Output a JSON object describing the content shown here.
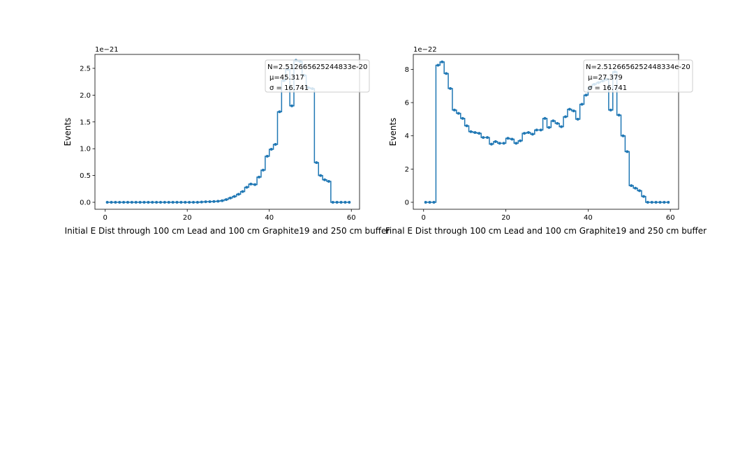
{
  "chart_data": [
    {
      "type": "line",
      "drawstyle": "steps-mid",
      "marker": "dot",
      "color": "#1f77b4",
      "xlabel": "Initial E Dist through 100 cm Lead and 100 cm Graphite19 and 250 cm buffer",
      "ylabel": "Events",
      "offset_text": "1e−21",
      "scale": 1e-21,
      "xlim": [
        -2.5,
        62
      ],
      "ylim": [
        -0.13,
        2.76
      ],
      "xticks": [
        0,
        20,
        40,
        60
      ],
      "xtick_labels": [
        "0",
        "20",
        "40",
        "60"
      ],
      "yticks": [
        0,
        0.5,
        1.0,
        1.5,
        2.0,
        2.5
      ],
      "ytick_labels": [
        "0.0",
        "0.5",
        "1.0",
        "1.5",
        "2.0",
        "2.5"
      ],
      "x": [
        0.5,
        1.5,
        2.5,
        3.5,
        4.5,
        5.5,
        6.5,
        7.5,
        8.5,
        9.5,
        10.5,
        11.5,
        12.5,
        13.5,
        14.5,
        15.5,
        16.5,
        17.5,
        18.5,
        19.5,
        20.5,
        21.5,
        22.5,
        23.5,
        24.5,
        25.5,
        26.5,
        27.5,
        28.5,
        29.5,
        30.5,
        31.5,
        32.5,
        33.5,
        34.5,
        35.5,
        36.5,
        37.5,
        38.5,
        39.5,
        40.5,
        41.5,
        42.5,
        43.5,
        44.5,
        45.5,
        46.5,
        47.5,
        48.5,
        49.5,
        50.5,
        51.5,
        52.5,
        53.5,
        54.5,
        55.5,
        56.5,
        57.5,
        58.5,
        59.5
      ],
      "y": [
        0,
        0,
        0,
        0,
        0,
        0,
        0,
        0,
        0,
        0,
        0,
        0,
        0,
        0,
        0,
        0,
        0,
        0,
        0,
        0,
        0,
        0,
        0,
        0.005,
        0.01,
        0.012,
        0.015,
        0.02,
        0.03,
        0.05,
        0.08,
        0.11,
        0.15,
        0.2,
        0.28,
        0.34,
        0.33,
        0.47,
        0.6,
        0.86,
        0.99,
        1.08,
        1.69,
        2.27,
        2.48,
        1.8,
        2.65,
        2.63,
        2.37,
        2.14,
        2.12,
        0.74,
        0.5,
        0.42,
        0.39,
        0,
        0,
        0,
        0,
        0
      ],
      "legend": {
        "location": "upper right",
        "lines": [
          "N=2.512665625244833e-20",
          "μ=45.317",
          "σ = 16.741"
        ]
      }
    },
    {
      "type": "line",
      "drawstyle": "steps-mid",
      "marker": "dot",
      "color": "#1f77b4",
      "xlabel": "Final E Dist through 100 cm Lead and 100 cm Graphite19 and 250 cm buffer",
      "ylabel": "Events",
      "offset_text": "1e−22",
      "scale": 1e-22,
      "xlim": [
        -2.5,
        62
      ],
      "ylim": [
        -0.42,
        8.9
      ],
      "xticks": [
        0,
        20,
        40,
        60
      ],
      "xtick_labels": [
        "0",
        "20",
        "40",
        "60"
      ],
      "yticks": [
        0,
        2,
        4,
        6,
        8
      ],
      "ytick_labels": [
        "0",
        "2",
        "4",
        "6",
        "8"
      ],
      "x": [
        0.5,
        1.5,
        2.5,
        3.5,
        4.5,
        5.5,
        6.5,
        7.5,
        8.5,
        9.5,
        10.5,
        11.5,
        12.5,
        13.5,
        14.5,
        15.5,
        16.5,
        17.5,
        18.5,
        19.5,
        20.5,
        21.5,
        22.5,
        23.5,
        24.5,
        25.5,
        26.5,
        27.5,
        28.5,
        29.5,
        30.5,
        31.5,
        32.5,
        33.5,
        34.5,
        35.5,
        36.5,
        37.5,
        38.5,
        39.5,
        40.5,
        41.5,
        42.5,
        43.5,
        44.5,
        45.5,
        46.5,
        47.5,
        48.5,
        49.5,
        50.5,
        51.5,
        52.5,
        53.5,
        54.5,
        55.5,
        56.5,
        57.5,
        58.5,
        59.5
      ],
      "y": [
        0,
        0,
        0,
        8.25,
        8.45,
        7.75,
        6.85,
        5.55,
        5.35,
        5.05,
        4.6,
        4.25,
        4.2,
        4.15,
        3.9,
        3.9,
        3.5,
        3.65,
        3.55,
        3.55,
        3.85,
        3.8,
        3.55,
        3.7,
        4.15,
        4.2,
        4.1,
        4.35,
        4.35,
        5.05,
        4.5,
        4.9,
        4.75,
        4.55,
        5.15,
        5.6,
        5.5,
        5.0,
        5.9,
        6.45,
        6.9,
        7.1,
        7.2,
        7.3,
        7.4,
        5.55,
        7.85,
        5.25,
        4.0,
        3.05,
        1.0,
        0.85,
        0.7,
        0.35,
        0,
        0,
        0,
        0,
        0,
        0
      ],
      "legend": {
        "location": "upper right",
        "lines": [
          "N=2.5126656252448334e-20",
          "μ=27.379",
          "σ = 16.741"
        ]
      }
    }
  ]
}
